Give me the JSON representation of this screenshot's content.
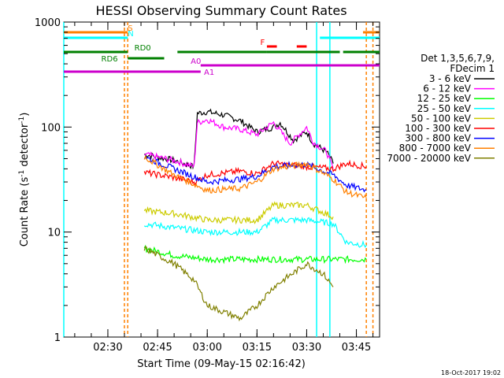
{
  "chart_data": {
    "type": "line",
    "title": "HESSI Observing Summary Count Rates",
    "xlabel": "Start Time (09-May-15 02:16:42)",
    "ylabel_main": "Count Rate (s",
    "ylabel_sup1": "-1",
    "ylabel_mid": " detector",
    "ylabel_sup2": "-1",
    "ylabel_end": ")",
    "y_scale": "log",
    "ylim": [
      1,
      1000
    ],
    "xlim_minutes": [
      "02:16:42",
      "03:52"
    ],
    "x_ticks": [
      "02:30",
      "02:45",
      "03:00",
      "03:15",
      "03:30",
      "03:45"
    ],
    "y_ticks": [
      "1",
      "10",
      "100",
      "1000"
    ],
    "legend_header": [
      "Det 1,3,5,6,7,9,",
      "FDecim 1"
    ],
    "legend_placement": "right",
    "series": [
      {
        "name": "3 - 6 keV",
        "color": "#000000",
        "x": [
          "02:41",
          "02:50",
          "02:56",
          "02:57",
          "03:00",
          "03:05",
          "03:10",
          "03:15",
          "03:20",
          "03:22",
          "03:26",
          "03:30",
          "03:32",
          "03:36",
          "03:38"
        ],
        "y": [
          55,
          48,
          42,
          135,
          140,
          130,
          115,
          90,
          100,
          110,
          75,
          90,
          70,
          58,
          45
        ]
      },
      {
        "name": "6 - 12 keV",
        "color": "#ff00ff",
        "x": [
          "02:41",
          "02:50",
          "02:56",
          "02:57",
          "03:00",
          "03:05",
          "03:10",
          "03:15",
          "03:19",
          "03:20",
          "03:25",
          "03:30",
          "03:32",
          "03:36",
          "03:38"
        ],
        "y": [
          55,
          48,
          42,
          110,
          118,
          100,
          95,
          85,
          105,
          110,
          70,
          100,
          72,
          58,
          40
        ]
      },
      {
        "name": "12 - 25 keV",
        "color": "#00ff00",
        "x": [
          "02:41",
          "02:50",
          "03:00",
          "03:10",
          "03:20",
          "03:30",
          "03:38",
          "03:42",
          "03:48"
        ],
        "y": [
          7,
          6,
          5.5,
          5.5,
          5.5,
          5.5,
          5.5,
          5.5,
          5.5
        ]
      },
      {
        "name": "25 - 50 keV",
        "color": "#00ffff",
        "x": [
          "02:41",
          "02:50",
          "03:00",
          "03:10",
          "03:15",
          "03:20",
          "03:30",
          "03:38",
          "03:42",
          "03:48"
        ],
        "y": [
          12,
          11,
          10,
          10,
          10,
          13,
          13,
          12,
          8,
          7.5
        ]
      },
      {
        "name": "50 - 100 keV",
        "color": "#cccc00",
        "x": [
          "02:41",
          "02:50",
          "03:00",
          "03:10",
          "03:15",
          "03:20",
          "03:30",
          "03:38"
        ],
        "y": [
          16,
          15,
          13,
          13,
          13,
          18,
          18,
          14
        ]
      },
      {
        "name": "100 - 300 keV",
        "color": "#ff0000",
        "x": [
          "02:41",
          "02:50",
          "02:56",
          "03:00",
          "03:10",
          "03:15",
          "03:20",
          "03:30",
          "03:38",
          "03:42",
          "03:48"
        ],
        "y": [
          37,
          33,
          30,
          35,
          38,
          36,
          45,
          42,
          40,
          45,
          42
        ]
      },
      {
        "name": "300 - 800 keV",
        "color": "#0000ff",
        "x": [
          "02:41",
          "02:50",
          "03:00",
          "03:10",
          "03:15",
          "03:20",
          "03:30",
          "03:38",
          "03:42",
          "03:48"
        ],
        "y": [
          52,
          40,
          30,
          32,
          34,
          42,
          44,
          35,
          28,
          25
        ]
      },
      {
        "name": "800 - 7000 keV",
        "color": "#ff8000",
        "x": [
          "02:41",
          "02:50",
          "03:00",
          "03:10",
          "03:15",
          "03:20",
          "03:30",
          "03:38",
          "03:42",
          "03:48"
        ],
        "y": [
          52,
          35,
          25,
          26,
          30,
          40,
          45,
          32,
          24,
          21
        ]
      },
      {
        "name": "7000 - 20000 keV",
        "color": "#808000",
        "x": [
          "02:41",
          "02:50",
          "02:56",
          "03:00",
          "03:10",
          "03:15",
          "03:20",
          "03:30",
          "03:35",
          "03:38"
        ],
        "y": [
          7,
          5,
          3.5,
          2,
          1.5,
          2,
          3,
          5,
          4,
          3
        ]
      }
    ],
    "flags": [
      {
        "label": "S",
        "color": "#ff8000",
        "segments": [
          [
            "02:16:42",
            "02:36"
          ],
          [
            "03:47",
            "03:52"
          ]
        ]
      },
      {
        "label": "N",
        "color": "#00ffff",
        "segments": [
          [
            "02:16:42",
            "02:36"
          ],
          [
            "03:34",
            "03:52"
          ]
        ]
      },
      {
        "label": "F",
        "color": "#ff0000",
        "segments": [
          [
            "03:18",
            "03:21"
          ],
          [
            "03:27",
            "03:30"
          ]
        ]
      },
      {
        "label": "RD0",
        "color": "#008000",
        "segments": [
          [
            "02:16:42",
            "02:36"
          ],
          [
            "02:51",
            "03:18"
          ],
          [
            "03:18",
            "03:40"
          ],
          [
            "03:41",
            "03:52"
          ]
        ]
      },
      {
        "label": "RD6",
        "color": "#008000",
        "segments": [
          [
            "02:36",
            "02:47"
          ]
        ]
      },
      {
        "label": "A0",
        "color": "#cc00cc",
        "segments": [
          [
            "02:58",
            "03:52"
          ]
        ]
      },
      {
        "label": "A1",
        "color": "#cc00cc",
        "segments": [
          [
            "02:16:42",
            "02:58"
          ]
        ]
      }
    ],
    "vertical_lines": [
      {
        "color": "#00ffff",
        "style": "solid",
        "x": [
          "02:16:42",
          "03:33",
          "03:37"
        ]
      },
      {
        "color": "#ff8000",
        "style": "dashed",
        "x": [
          "02:35",
          "02:36",
          "03:48",
          "03:50"
        ]
      }
    ],
    "footer_timestamp": "18-Oct-2017 19:02"
  }
}
